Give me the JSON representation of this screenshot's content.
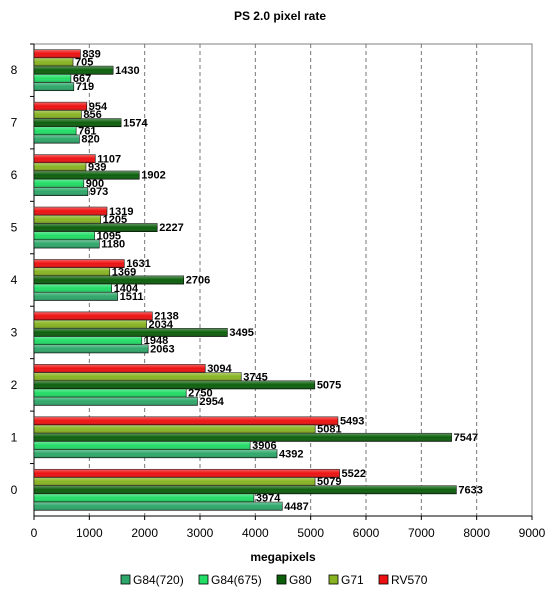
{
  "chart_data": {
    "type": "bar",
    "orientation": "horizontal",
    "title": "PS 2.0 pixel rate",
    "xlabel": "megapixels",
    "ylabel": "",
    "xlim": [
      0,
      9000
    ],
    "x_ticks": [
      0,
      1000,
      2000,
      3000,
      4000,
      5000,
      6000,
      7000,
      8000,
      9000
    ],
    "categories": [
      "0",
      "1",
      "2",
      "3",
      "4",
      "5",
      "6",
      "7",
      "8"
    ],
    "grid": "vertical dashed",
    "legend_position": "bottom",
    "series": [
      {
        "name": "G84(720)",
        "color": "#2ea86a",
        "values": [
          4487,
          4392,
          2954,
          2063,
          1511,
          1180,
          973,
          820,
          719
        ]
      },
      {
        "name": "G84(675)",
        "color": "#22dd66",
        "values": [
          3974,
          3906,
          2750,
          1948,
          1404,
          1095,
          900,
          761,
          667
        ]
      },
      {
        "name": "G80",
        "color": "#0b5f0b",
        "values": [
          7633,
          7547,
          5075,
          3495,
          2706,
          2227,
          1902,
          1574,
          1430
        ]
      },
      {
        "name": "G71",
        "color": "#88b422",
        "values": [
          5079,
          5081,
          3745,
          2034,
          1369,
          1205,
          939,
          856,
          705
        ]
      },
      {
        "name": "RV570",
        "color": "#ee1111",
        "values": [
          5522,
          5493,
          3094,
          2138,
          1631,
          1319,
          1107,
          954,
          839
        ]
      }
    ]
  }
}
